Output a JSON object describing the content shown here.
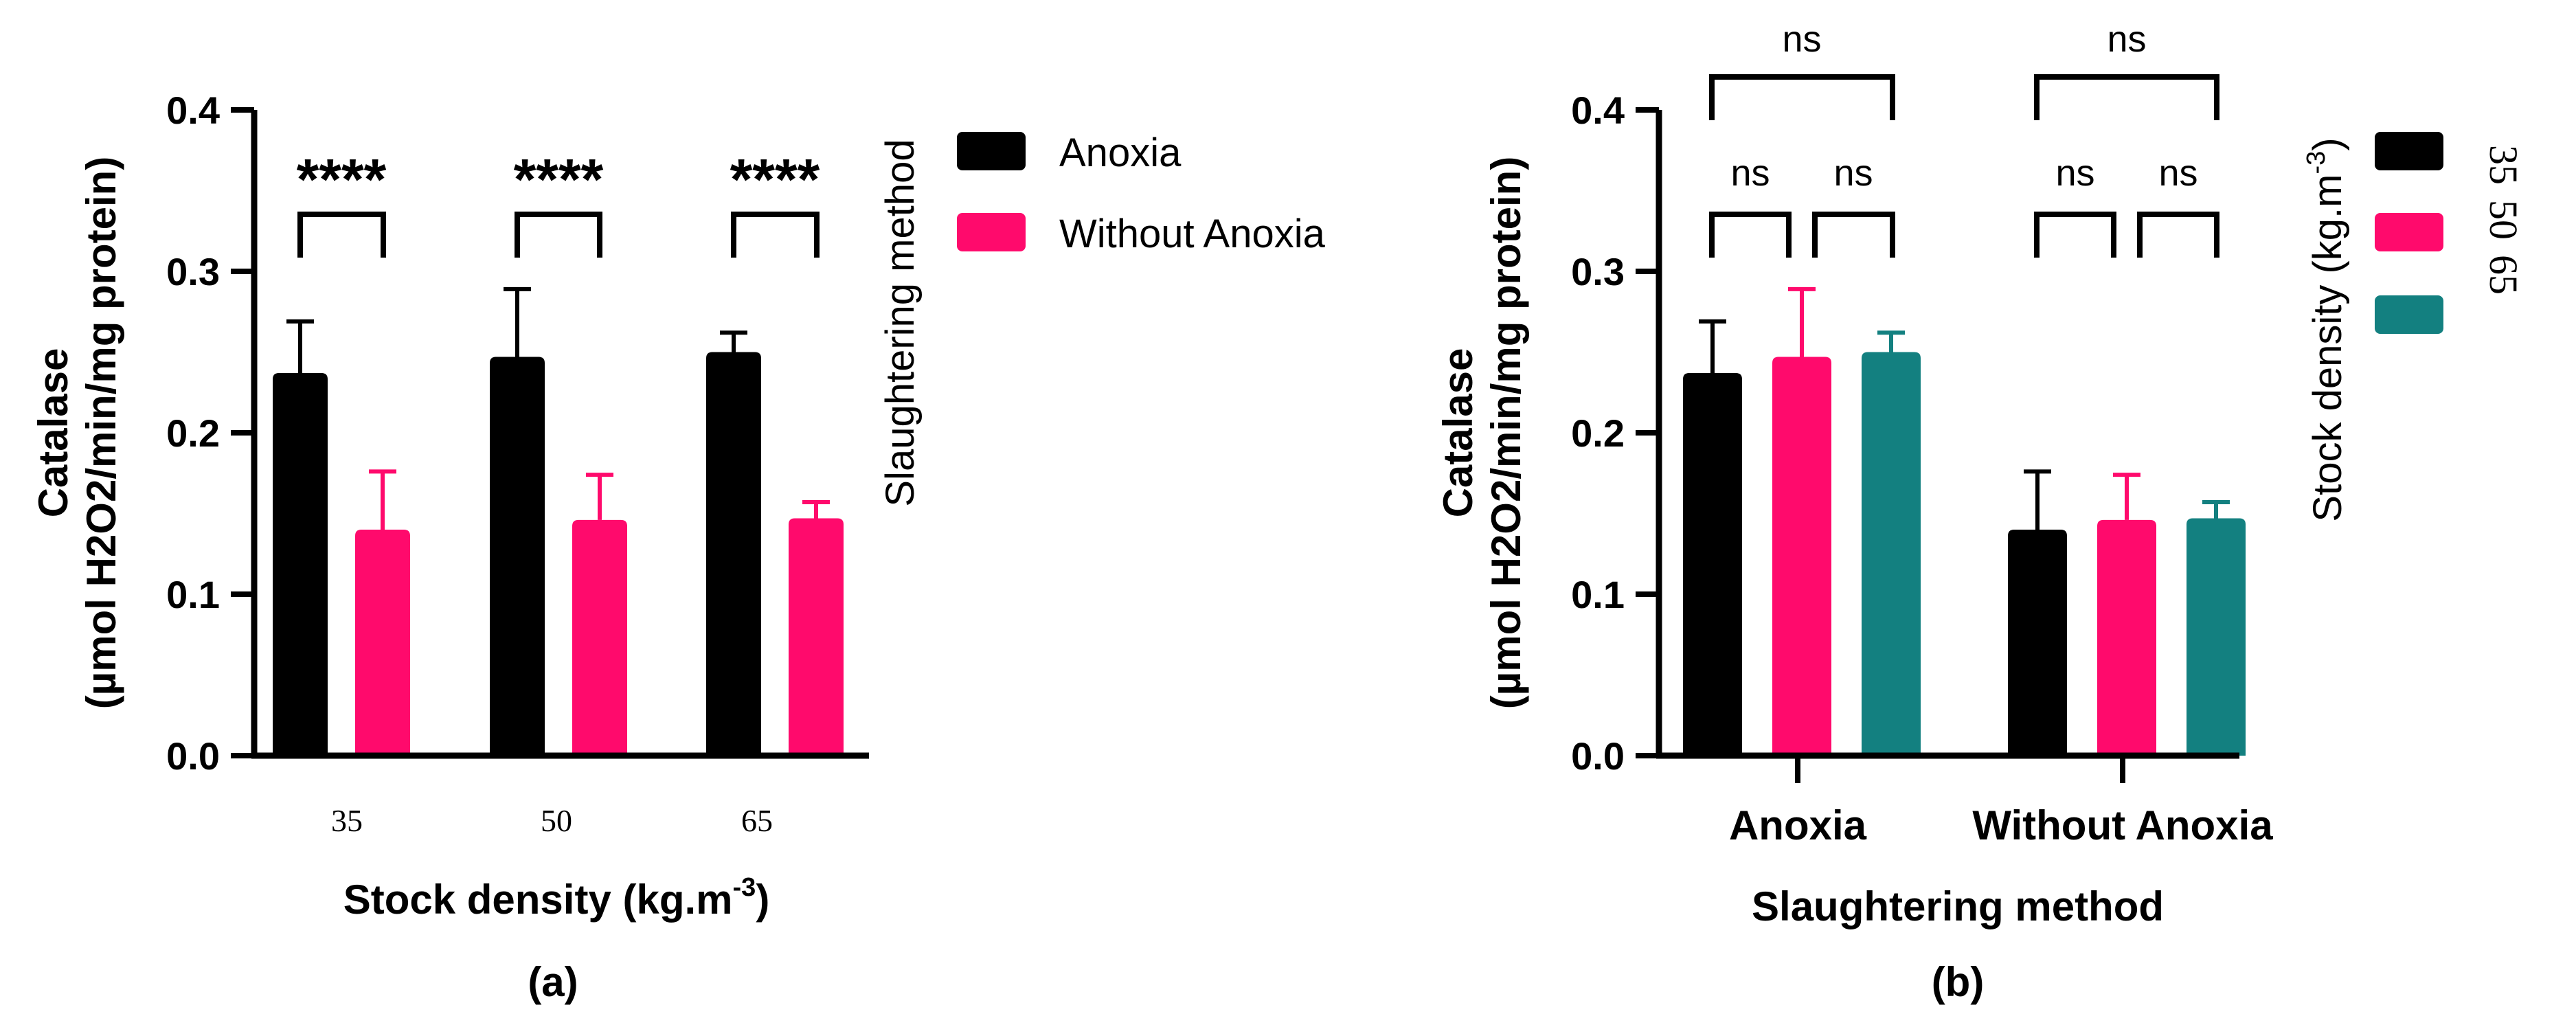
{
  "colors": {
    "black": "#000000",
    "pink": "#ff0a6c",
    "teal": "#138080"
  },
  "chart_data": [
    {
      "type": "bar",
      "panel_label": "(a)",
      "title": "",
      "ylabel_line1": "Catalase",
      "ylabel_line2": "(µmol H2O2/min/mg protein)",
      "xlabel_main": "Stock density (kg.m",
      "xlabel_sup": "-3",
      "xlabel_close": ")",
      "ylim": [
        0,
        0.4
      ],
      "yticks": [
        "0.0",
        "0.1",
        "0.2",
        "0.3",
        "0.4"
      ],
      "categories": [
        "35",
        "50",
        "65"
      ],
      "series": [
        {
          "name": "Anoxia",
          "color": "#000000",
          "values": [
            0.237,
            0.247,
            0.25
          ],
          "errors": [
            0.032,
            0.042,
            0.012
          ]
        },
        {
          "name": "Without Anoxia",
          "color": "#ff0a6c",
          "values": [
            0.14,
            0.146,
            0.147
          ],
          "errors": [
            0.036,
            0.028,
            0.01
          ]
        }
      ],
      "legend_title": "Slaughtering method",
      "legend_position": "right",
      "significance": [
        "****",
        "****",
        "****"
      ]
    },
    {
      "type": "bar",
      "panel_label": "(b)",
      "title": "",
      "ylabel_line1": "Catalase",
      "ylabel_line2": "(µmol H2O2/min/mg protein)",
      "xlabel": "Slaughtering method",
      "ylim": [
        0,
        0.4
      ],
      "yticks": [
        "0.0",
        "0.1",
        "0.2",
        "0.3",
        "0.4"
      ],
      "categories": [
        "Anoxia",
        "Without Anoxia"
      ],
      "series": [
        {
          "name": "35",
          "color": "#000000",
          "values": [
            0.237,
            0.14
          ],
          "errors": [
            0.032,
            0.036
          ]
        },
        {
          "name": "50",
          "color": "#ff0a6c",
          "values": [
            0.247,
            0.146
          ],
          "errors": [
            0.042,
            0.028
          ]
        },
        {
          "name": "65",
          "color": "#138080",
          "values": [
            0.25,
            0.147
          ],
          "errors": [
            0.012,
            0.01
          ]
        }
      ],
      "legend_title_main": "Stock density (kg.m",
      "legend_title_sup": "-3",
      "legend_title_close": ")",
      "legend_position": "right",
      "significance_labels": [
        "ns",
        "ns",
        "ns",
        "ns",
        "ns",
        "ns"
      ]
    }
  ]
}
